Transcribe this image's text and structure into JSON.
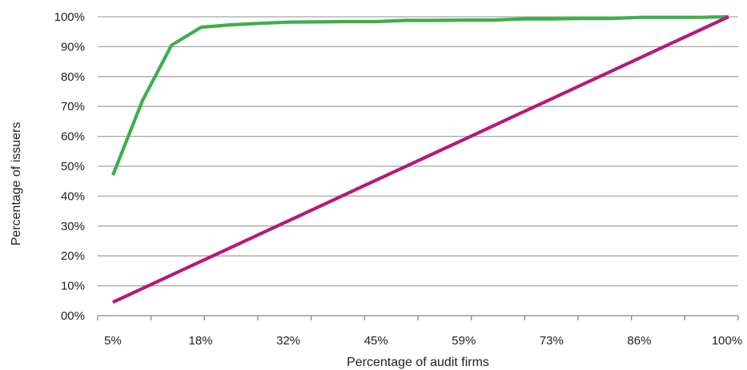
{
  "chart_data": {
    "type": "line",
    "title": "",
    "xlabel": "Percentage of audit firms",
    "ylabel": "Percentage of issuers",
    "x_tick_labels": [
      "5%",
      "18%",
      "32%",
      "45%",
      "59%",
      "73%",
      "86%",
      "100%"
    ],
    "y_tick_labels": [
      "00%",
      "10%",
      "20%",
      "30%",
      "40%",
      "50%",
      "60%",
      "70%",
      "80%",
      "90%",
      "100%"
    ],
    "xlim": [
      0,
      100
    ],
    "ylim": [
      0,
      100
    ],
    "grid": "horizontal",
    "legend": "none",
    "x": [
      4.5,
      9.1,
      13.6,
      18.2,
      22.7,
      27.3,
      31.8,
      36.4,
      40.9,
      45.5,
      50.0,
      54.5,
      59.1,
      63.6,
      68.2,
      72.7,
      77.3,
      81.8,
      86.4,
      90.9,
      95.5,
      100.0
    ],
    "series": [
      {
        "color": "#3cb04a",
        "values": [
          47,
          72,
          90.5,
          96.5,
          97.3,
          97.8,
          98.2,
          98.3,
          98.4,
          98.4,
          98.8,
          98.8,
          98.9,
          98.9,
          99.3,
          99.3,
          99.4,
          99.4,
          99.8,
          99.8,
          99.8,
          100
        ]
      },
      {
        "color": "#b41a7a",
        "values": [
          4.5,
          9.1,
          13.6,
          18.2,
          22.7,
          27.3,
          31.8,
          36.4,
          40.9,
          45.5,
          50.0,
          54.5,
          59.1,
          63.6,
          68.2,
          72.7,
          77.3,
          81.8,
          86.4,
          90.9,
          95.5,
          100.0
        ]
      }
    ]
  }
}
